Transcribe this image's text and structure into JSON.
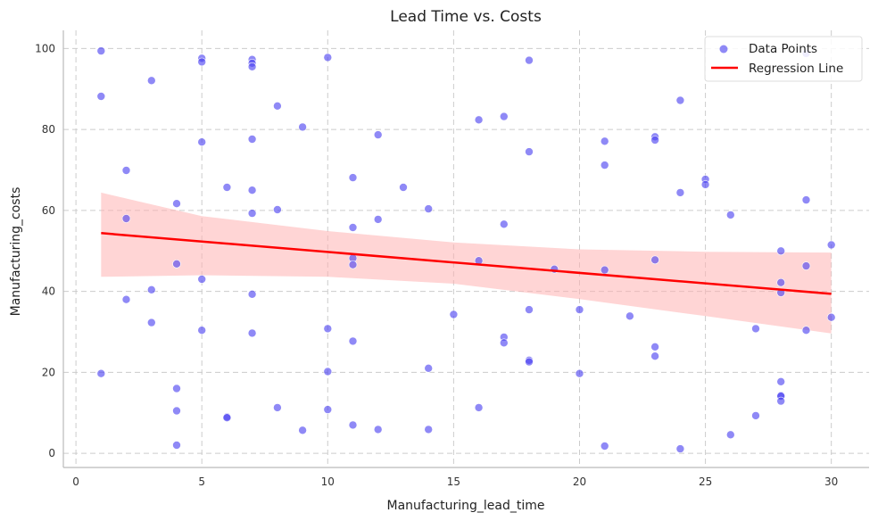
{
  "chart_data": {
    "type": "scatter",
    "title": "Lead Time vs. Costs",
    "xlabel": "Manufacturing_lead_time",
    "ylabel": "Manufacturing_costs",
    "xlim": [
      -0.5,
      31.5
    ],
    "ylim": [
      -3.5,
      104.5
    ],
    "xticks": [
      0,
      5,
      10,
      15,
      20,
      25,
      30
    ],
    "yticks": [
      0,
      20,
      40,
      60,
      80,
      100
    ],
    "grid": true,
    "legend_position": "top-right",
    "colors": {
      "points": "#4a40f0",
      "line": "#ff0000",
      "band": "#ffb3b3",
      "grid": "#cccccc",
      "axis": "#bbbbbb"
    },
    "series": [
      {
        "name": "Data Points",
        "kind": "scatter",
        "points": [
          [
            1,
            99.4
          ],
          [
            1,
            88.2
          ],
          [
            1,
            19.7
          ],
          [
            2,
            69.9
          ],
          [
            2,
            58.0
          ],
          [
            2,
            38.0
          ],
          [
            3,
            92.1
          ],
          [
            3,
            40.4
          ],
          [
            3,
            32.3
          ],
          [
            4,
            61.7
          ],
          [
            4,
            46.8
          ],
          [
            4,
            16.0
          ],
          [
            4,
            10.5
          ],
          [
            4,
            2.0
          ],
          [
            5,
            97.6
          ],
          [
            5,
            96.7
          ],
          [
            5,
            76.9
          ],
          [
            5,
            43.0
          ],
          [
            5,
            30.4
          ],
          [
            6,
            65.7
          ],
          [
            6,
            9.0
          ],
          [
            6,
            8.8
          ],
          [
            7,
            97.3
          ],
          [
            7,
            96.4
          ],
          [
            7,
            95.5
          ],
          [
            7,
            77.6
          ],
          [
            7,
            65.0
          ],
          [
            7,
            59.3
          ],
          [
            7,
            39.3
          ],
          [
            7,
            29.7
          ],
          [
            8,
            85.8
          ],
          [
            8,
            60.2
          ],
          [
            8,
            11.3
          ],
          [
            9,
            80.6
          ],
          [
            9,
            5.7
          ],
          [
            10,
            97.8
          ],
          [
            10,
            30.8
          ],
          [
            10,
            20.2
          ],
          [
            10,
            10.8
          ],
          [
            11,
            68.1
          ],
          [
            11,
            55.8
          ],
          [
            11,
            48.2
          ],
          [
            11,
            46.6
          ],
          [
            11,
            27.7
          ],
          [
            11,
            7.0
          ],
          [
            12,
            78.7
          ],
          [
            12,
            57.8
          ],
          [
            12,
            5.9
          ],
          [
            13,
            65.7
          ],
          [
            14,
            60.4
          ],
          [
            14,
            21.0
          ],
          [
            14,
            5.9
          ],
          [
            15,
            34.3
          ],
          [
            16,
            82.4
          ],
          [
            16,
            47.6
          ],
          [
            16,
            11.3
          ],
          [
            17,
            83.2
          ],
          [
            17,
            56.6
          ],
          [
            17,
            28.7
          ],
          [
            17,
            27.3
          ],
          [
            18,
            97.1
          ],
          [
            18,
            74.5
          ],
          [
            18,
            35.5
          ],
          [
            18,
            23.0
          ],
          [
            18,
            22.6
          ],
          [
            19,
            45.5
          ],
          [
            20,
            35.5
          ],
          [
            20,
            19.7
          ],
          [
            21,
            77.1
          ],
          [
            21,
            71.2
          ],
          [
            21,
            45.3
          ],
          [
            21,
            1.8
          ],
          [
            22,
            33.9
          ],
          [
            23,
            78.2
          ],
          [
            23,
            77.4
          ],
          [
            23,
            47.8
          ],
          [
            23,
            26.3
          ],
          [
            23,
            24.0
          ],
          [
            24,
            87.2
          ],
          [
            24,
            64.4
          ],
          [
            24,
            1.1
          ],
          [
            25,
            67.7
          ],
          [
            25,
            66.4
          ],
          [
            26,
            58.9
          ],
          [
            26,
            4.6
          ],
          [
            27,
            30.8
          ],
          [
            27,
            9.3
          ],
          [
            28,
            50.0
          ],
          [
            28,
            42.2
          ],
          [
            28,
            39.7
          ],
          [
            28,
            17.7
          ],
          [
            28,
            14.3
          ],
          [
            28,
            14.1
          ],
          [
            28,
            12.9
          ],
          [
            29,
            98.8
          ],
          [
            29,
            62.6
          ],
          [
            29,
            46.3
          ],
          [
            29,
            30.4
          ],
          [
            30,
            51.5
          ],
          [
            30,
            33.6
          ]
        ]
      },
      {
        "name": "Regression Line",
        "kind": "line",
        "x": [
          1,
          30
        ],
        "y": [
          54.4,
          39.4
        ]
      }
    ],
    "confidence_band": {
      "x": [
        1,
        5,
        10,
        15,
        20,
        25,
        30
      ],
      "upper": [
        64.4,
        58.6,
        54.9,
        52.1,
        50.4,
        49.8,
        49.6
      ],
      "lower": [
        43.6,
        44.0,
        43.6,
        41.9,
        38.1,
        33.9,
        29.6
      ]
    }
  }
}
